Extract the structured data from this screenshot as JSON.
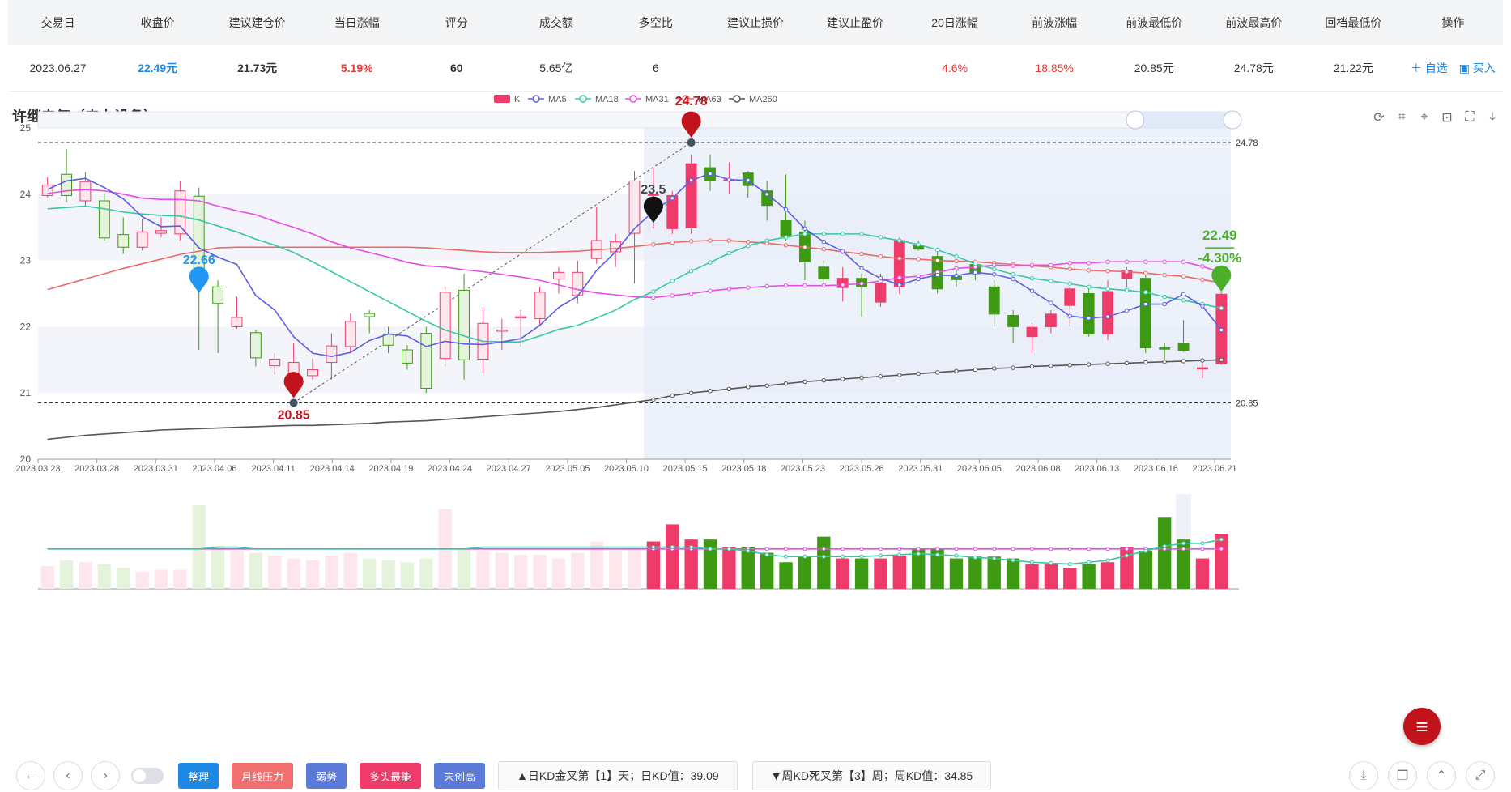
{
  "table": {
    "headers": [
      "交易日",
      "收盘价",
      "建议建仓价",
      "当日涨幅",
      "评分",
      "成交额",
      "多空比",
      "建议止损价",
      "建议止盈价",
      "20日涨幅",
      "前波涨幅",
      "前波最低价",
      "前波最高价",
      "回档最低价",
      "操作"
    ],
    "row": {
      "date": "2023.06.27",
      "close": "22.49元",
      "build": "21.73元",
      "chg": "5.19%",
      "score": "60",
      "amount": "5.65亿",
      "ratio": "6",
      "stop_loss": "",
      "take_profit": "",
      "chg20": "4.6%",
      "prev_wave": "18.85%",
      "prev_low": "20.85元",
      "prev_high": "24.78元",
      "pullback_low": "21.22元",
      "act_watch": "＋ 自选",
      "act_buy": "▣ 买入"
    }
  },
  "chart_title": "许继电气（电力设备）",
  "toolbox": [
    "refresh-icon",
    "crop-icon",
    "crop-restore-icon",
    "zoom-reset-icon",
    "fullscreen-icon",
    "download-icon"
  ],
  "chart_data": {
    "type": "candlestick",
    "legend": [
      "K",
      "MA5",
      "MA18",
      "MA31",
      "MA63",
      "MA250"
    ],
    "ylim": [
      20,
      25
    ],
    "yticks": [
      "20",
      "21",
      "22",
      "23",
      "24",
      "25"
    ],
    "xticks": [
      "2023.03.23",
      "2023.03.28",
      "2023.03.31",
      "2023.04.06",
      "2023.04.11",
      "2023.04.14",
      "2023.04.19",
      "2023.04.24",
      "2023.04.27",
      "2023.05.05",
      "2023.05.10",
      "2023.05.15",
      "2023.05.18",
      "2023.05.23",
      "2023.05.26",
      "2023.05.31",
      "2023.06.05",
      "2023.06.08",
      "2023.06.13",
      "2023.06.16",
      "2023.06.21"
    ],
    "candles": [
      [
        23.98,
        24.14,
        24.26,
        23.95
      ],
      [
        24.3,
        23.98,
        24.68,
        23.88
      ],
      [
        23.9,
        24.19,
        24.33,
        23.82
      ],
      [
        23.9,
        23.34,
        24.0,
        23.3
      ],
      [
        23.39,
        23.2,
        23.65,
        23.1
      ],
      [
        23.2,
        23.43,
        23.63,
        23.15
      ],
      [
        23.41,
        23.45,
        23.65,
        23.35
      ],
      [
        23.4,
        24.05,
        24.2,
        23.3
      ],
      [
        23.97,
        22.68,
        24.1,
        21.65
      ],
      [
        22.6,
        22.35,
        22.7,
        21.6
      ],
      [
        22.0,
        22.14,
        22.45,
        21.97
      ],
      [
        21.91,
        21.53,
        21.95,
        21.4
      ],
      [
        21.41,
        21.51,
        21.6,
        21.28
      ],
      [
        21.3,
        21.46,
        21.75,
        21.19
      ],
      [
        21.26,
        21.35,
        21.52,
        21.2
      ],
      [
        21.46,
        21.71,
        21.9,
        21.2
      ],
      [
        21.7,
        22.08,
        22.2,
        21.6
      ],
      [
        22.2,
        22.15,
        22.25,
        21.9
      ],
      [
        21.89,
        21.72,
        22.0,
        21.6
      ],
      [
        21.65,
        21.45,
        21.72,
        21.35
      ],
      [
        21.9,
        21.07,
        22.0,
        21.0
      ],
      [
        21.52,
        22.52,
        22.6,
        21.4
      ],
      [
        22.55,
        21.5,
        22.8,
        21.2
      ],
      [
        21.51,
        22.05,
        22.3,
        21.3
      ],
      [
        21.95,
        21.95,
        22.12,
        21.65
      ],
      [
        22.14,
        22.15,
        22.25,
        21.7
      ],
      [
        22.12,
        22.52,
        22.6,
        22.0
      ],
      [
        22.72,
        22.82,
        22.9,
        22.5
      ],
      [
        22.47,
        22.82,
        23.0,
        22.35
      ],
      [
        23.03,
        23.3,
        23.8,
        22.95
      ],
      [
        23.13,
        23.28,
        23.4,
        22.9
      ],
      [
        23.41,
        24.2,
        24.35,
        22.65
      ],
      [
        24.0,
        24.0,
        24.4,
        23.48
      ],
      [
        23.48,
        23.98,
        24.05,
        23.4
      ],
      [
        23.49,
        24.46,
        24.6,
        23.4
      ],
      [
        24.4,
        24.2,
        24.6,
        24.05
      ],
      [
        24.2,
        24.22,
        24.48,
        24.0
      ],
      [
        24.32,
        24.13,
        24.35,
        23.95
      ],
      [
        24.05,
        23.83,
        24.2,
        23.6
      ],
      [
        23.6,
        23.36,
        24.3,
        23.3
      ],
      [
        23.43,
        22.98,
        23.6,
        22.7
      ],
      [
        22.9,
        22.72,
        23.0,
        22.65
      ],
      [
        22.59,
        22.73,
        22.9,
        22.38
      ],
      [
        22.73,
        22.6,
        22.8,
        22.15
      ],
      [
        22.37,
        22.65,
        22.8,
        22.3
      ],
      [
        22.6,
        23.3,
        23.35,
        22.5
      ],
      [
        23.22,
        23.17,
        23.3,
        23.15
      ],
      [
        23.06,
        22.57,
        23.15,
        22.5
      ],
      [
        22.76,
        22.71,
        22.9,
        22.6
      ],
      [
        22.94,
        22.8,
        23.0,
        22.7
      ],
      [
        22.6,
        22.19,
        22.7,
        22.0
      ],
      [
        22.17,
        22.0,
        22.25,
        21.75
      ],
      [
        21.85,
        21.99,
        22.05,
        21.6
      ],
      [
        22.0,
        22.19,
        22.25,
        21.9
      ],
      [
        22.32,
        22.57,
        22.6,
        22.0
      ],
      [
        22.5,
        21.89,
        22.6,
        21.85
      ],
      [
        21.89,
        22.53,
        22.7,
        21.8
      ],
      [
        22.73,
        22.85,
        22.9,
        22.6
      ],
      [
        22.73,
        21.68,
        22.8,
        21.6
      ],
      [
        21.68,
        21.66,
        21.75,
        21.45
      ],
      [
        21.75,
        21.64,
        22.1,
        21.62
      ],
      [
        21.36,
        21.38,
        21.45,
        21.22
      ],
      [
        21.44,
        22.49,
        22.52,
        21.42
      ]
    ],
    "ma5": [
      24.07,
      24.2,
      24.24,
      24.1,
      23.93,
      23.66,
      23.51,
      23.52,
      23.19,
      23.05,
      22.94,
      22.47,
      22.25,
      21.85,
      21.6,
      21.55,
      21.61,
      21.79,
      21.89,
      21.86,
      21.7,
      21.78,
      21.74,
      21.73,
      21.77,
      21.82,
      22.02,
      22.29,
      22.46,
      22.85,
      23.13,
      23.48,
      23.74,
      23.94,
      24.21,
      24.31,
      24.22,
      24.21,
      24.0,
      23.77,
      23.48,
      23.28,
      23.14,
      22.88,
      22.73,
      22.63,
      22.72,
      22.78,
      22.77,
      22.82,
      22.79,
      22.72,
      22.54,
      22.36,
      22.16,
      22.13,
      22.15,
      22.24,
      22.34,
      22.34,
      22.49,
      22.31,
      21.95
    ],
    "ma18": [
      23.78,
      23.8,
      23.82,
      23.78,
      23.73,
      23.7,
      23.68,
      23.67,
      23.61,
      23.52,
      23.43,
      23.32,
      23.23,
      23.12,
      22.98,
      22.83,
      22.68,
      22.53,
      22.38,
      22.23,
      22.08,
      21.95,
      21.86,
      21.78,
      21.77,
      21.77,
      21.86,
      21.96,
      22.02,
      22.13,
      22.25,
      22.41,
      22.53,
      22.69,
      22.84,
      22.97,
      23.11,
      23.22,
      23.3,
      23.35,
      23.4,
      23.4,
      23.4,
      23.4,
      23.35,
      23.3,
      23.24,
      23.16,
      23.06,
      22.95,
      22.87,
      22.79,
      22.73,
      22.69,
      22.65,
      22.6,
      22.57,
      22.55,
      22.52,
      22.45,
      22.4,
      22.34,
      22.28
    ],
    "ma31": [
      24.01,
      24.05,
      24.07,
      24.05,
      24.0,
      23.94,
      23.92,
      23.92,
      23.9,
      23.82,
      23.75,
      23.69,
      23.59,
      23.5,
      23.4,
      23.28,
      23.19,
      23.12,
      23.05,
      22.97,
      22.92,
      22.9,
      22.86,
      22.83,
      22.79,
      22.75,
      22.7,
      22.63,
      22.56,
      22.51,
      22.48,
      22.45,
      22.44,
      22.47,
      22.5,
      22.54,
      22.57,
      22.59,
      22.61,
      22.62,
      22.62,
      22.62,
      22.63,
      22.65,
      22.69,
      22.74,
      22.76,
      22.82,
      22.88,
      22.9,
      22.93,
      22.92,
      22.93,
      22.93,
      22.96,
      22.96,
      22.98,
      22.98,
      22.98,
      22.98,
      22.98,
      22.91,
      22.82
    ],
    "ma63": [
      22.56,
      22.64,
      22.72,
      22.8,
      22.88,
      22.95,
      23.02,
      23.09,
      23.14,
      23.19,
      23.2,
      23.2,
      23.2,
      23.2,
      23.2,
      23.2,
      23.2,
      23.2,
      23.2,
      23.2,
      23.19,
      23.17,
      23.15,
      23.13,
      23.12,
      23.12,
      23.12,
      23.13,
      23.14,
      23.16,
      23.18,
      23.21,
      23.24,
      23.27,
      23.29,
      23.3,
      23.3,
      23.28,
      23.26,
      23.23,
      23.2,
      23.17,
      23.13,
      23.1,
      23.06,
      23.03,
      23.02,
      23.0,
      22.99,
      22.98,
      22.96,
      22.94,
      22.92,
      22.9,
      22.87,
      22.85,
      22.84,
      22.83,
      22.81,
      22.78,
      22.76,
      22.71,
      22.66
    ],
    "ma250": [
      20.3,
      20.33,
      20.36,
      20.38,
      20.4,
      20.42,
      20.44,
      20.45,
      20.46,
      20.47,
      20.48,
      20.49,
      20.5,
      20.51,
      20.51,
      20.52,
      20.53,
      20.54,
      20.56,
      20.57,
      20.58,
      20.6,
      20.62,
      20.64,
      20.66,
      20.68,
      20.7,
      20.72,
      20.75,
      20.78,
      20.82,
      20.86,
      20.9,
      20.96,
      21.0,
      21.03,
      21.06,
      21.09,
      21.11,
      21.14,
      21.17,
      21.19,
      21.21,
      21.23,
      21.25,
      21.27,
      21.29,
      21.31,
      21.33,
      21.35,
      21.37,
      21.38,
      21.4,
      21.41,
      21.42,
      21.43,
      21.44,
      21.45,
      21.46,
      21.47,
      21.48,
      21.49,
      21.5
    ],
    "volume": [
      24,
      30,
      28,
      26,
      22,
      18,
      20,
      20,
      88,
      45,
      40,
      38,
      35,
      32,
      30,
      35,
      38,
      32,
      30,
      28,
      32,
      84,
      42,
      40,
      38,
      36,
      36,
      32,
      38,
      50,
      40,
      42,
      50,
      68,
      52,
      52,
      44,
      44,
      38,
      28,
      34,
      55,
      32,
      32,
      32,
      35,
      42,
      42,
      32,
      34,
      34,
      32,
      26,
      26,
      22,
      26,
      28,
      44,
      40,
      75,
      52,
      32,
      58
    ],
    "vol_ma5": [
      42,
      42,
      42,
      42,
      42,
      42,
      42,
      42,
      42,
      44,
      44,
      42,
      42,
      42,
      42,
      42,
      42,
      42,
      42,
      42,
      42,
      42,
      42,
      44,
      44,
      44,
      44,
      44,
      44,
      44,
      44,
      44,
      44,
      44,
      44,
      42,
      42,
      40,
      36,
      34,
      34,
      34,
      34,
      34,
      35,
      36,
      37,
      36,
      35,
      33,
      32,
      30,
      28,
      27,
      26,
      28,
      30,
      35,
      40,
      45,
      48,
      48,
      52
    ],
    "vol_ma18": [
      42,
      42,
      42,
      42,
      42,
      42,
      42,
      42,
      42,
      42,
      42,
      42,
      42,
      42,
      42,
      42,
      42,
      42,
      42,
      42,
      42,
      42,
      42,
      42,
      42,
      42,
      42,
      42,
      42,
      42,
      42,
      42,
      42,
      42,
      42,
      42,
      42,
      42,
      42,
      42,
      42,
      42,
      42,
      42,
      42,
      42,
      42,
      42,
      42,
      42,
      42,
      42,
      42,
      42,
      42,
      42,
      42,
      42,
      42,
      42,
      42,
      42,
      42
    ],
    "vol_scale": 100,
    "highlight_start_index": 32,
    "hline_high": {
      "value": 24.78,
      "label": "24.78"
    },
    "hline_low": {
      "value": 20.85,
      "label": "20.85"
    },
    "markers": [
      {
        "index": 8,
        "value": 22.68,
        "label": "22.66",
        "color": "#2196f3",
        "kind": "pin-blue"
      },
      {
        "index": 13,
        "value": 20.85,
        "label": "20.85",
        "color": "#c0131b",
        "kind": "pin-red-below"
      },
      {
        "index": 32,
        "value": 23.74,
        "label": "23.5",
        "color": "#111111",
        "kind": "pin-black"
      },
      {
        "index": 34,
        "value": 24.78,
        "label": "24.78",
        "color": "#c0131b",
        "kind": "pin-red-above"
      },
      {
        "index": 62,
        "value": 22.7,
        "label": "22.49",
        "label2": "-4.30%",
        "color": "#4caf2a",
        "kind": "pin-green"
      }
    ]
  },
  "bottom": {
    "tags": [
      {
        "label": "整理",
        "color": "#1e88e5"
      },
      {
        "label": "月线压力",
        "color": "#f06f6f"
      },
      {
        "label": "弱势",
        "color": "#5c7bd9"
      },
      {
        "label": "多头最能",
        "color": "#ef3b6a"
      },
      {
        "label": "未创高",
        "color": "#5c7bd9"
      }
    ],
    "info1": "▲日KD金叉第【1】天；日KD值：39.09",
    "info2": "▼周KD死叉第【3】周；周KD值：34.85"
  },
  "colors": {
    "up": "#ef3b6a",
    "down": "#3e9a13",
    "ma5": "#5b5fe0",
    "ma18": "#37c7a5",
    "ma31": "#e74ce6",
    "ma63": "#e86a6a",
    "ma250": "#555555"
  }
}
